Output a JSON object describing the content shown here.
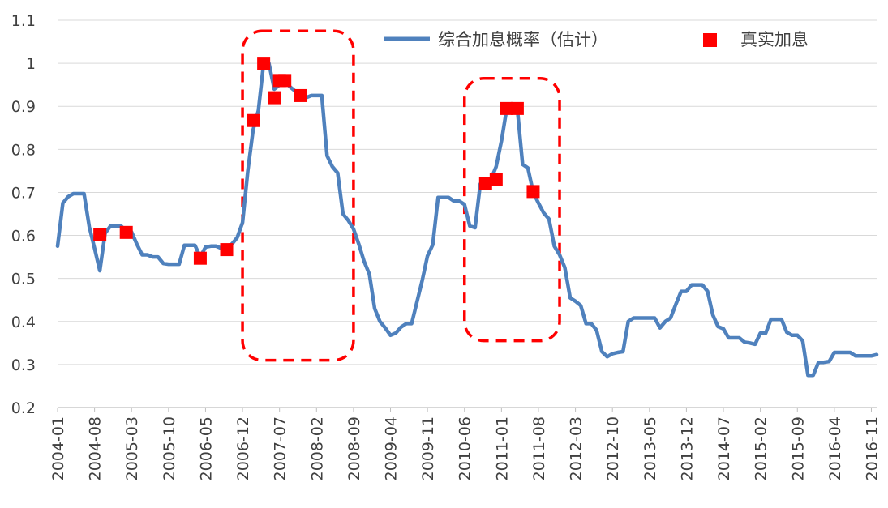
{
  "chart_data": {
    "type": "line",
    "title": "",
    "xlabel": "",
    "ylabel": "",
    "ylim": [
      0.2,
      1.1
    ],
    "yticks": [
      "0.2",
      "0.3",
      "0.4",
      "0.5",
      "0.6",
      "0.7",
      "0.8",
      "0.9",
      "1",
      "1.1"
    ],
    "xticks": [
      "2004-01",
      "2004-08",
      "2005-03",
      "2005-10",
      "2006-05",
      "2006-12",
      "2007-07",
      "2008-02",
      "2008-09",
      "2009-04",
      "2009-11",
      "2010-06",
      "2011-01",
      "2011-08",
      "2012-03",
      "2012-10",
      "2013-05",
      "2013-12",
      "2014-07",
      "2015-02",
      "2015-09",
      "2016-04",
      "2016-11"
    ],
    "grid": true,
    "legend": "top",
    "series": [
      {
        "name": "综合加息概率（估计）",
        "kind": "line",
        "color": "#4f81bd",
        "points": [
          [
            "2004-01",
            0.575
          ],
          [
            "2004-02",
            0.675
          ],
          [
            "2004-03",
            0.69
          ],
          [
            "2004-04",
            0.697
          ],
          [
            "2004-05",
            0.697
          ],
          [
            "2004-06",
            0.697
          ],
          [
            "2004-07",
            0.62
          ],
          [
            "2004-08",
            0.57
          ],
          [
            "2004-09",
            0.518
          ],
          [
            "2004-10",
            0.605
          ],
          [
            "2004-11",
            0.622
          ],
          [
            "2004-12",
            0.622
          ],
          [
            "2005-01",
            0.622
          ],
          [
            "2005-02",
            0.61
          ],
          [
            "2005-03",
            0.608
          ],
          [
            "2005-04",
            0.58
          ],
          [
            "2005-05",
            0.555
          ],
          [
            "2005-06",
            0.555
          ],
          [
            "2005-07",
            0.55
          ],
          [
            "2005-08",
            0.55
          ],
          [
            "2005-09",
            0.535
          ],
          [
            "2005-10",
            0.533
          ],
          [
            "2005-11",
            0.533
          ],
          [
            "2005-12",
            0.533
          ],
          [
            "2006-01",
            0.577
          ],
          [
            "2006-02",
            0.577
          ],
          [
            "2006-03",
            0.577
          ],
          [
            "2006-04",
            0.55
          ],
          [
            "2006-05",
            0.573
          ],
          [
            "2006-06",
            0.575
          ],
          [
            "2006-07",
            0.575
          ],
          [
            "2006-08",
            0.57
          ],
          [
            "2006-09",
            0.575
          ],
          [
            "2006-10",
            0.58
          ],
          [
            "2006-11",
            0.595
          ],
          [
            "2006-12",
            0.63
          ],
          [
            "2007-01",
            0.75
          ],
          [
            "2007-02",
            0.845
          ],
          [
            "2007-03",
            0.89
          ],
          [
            "2007-04",
            1.0
          ],
          [
            "2007-05",
            1.0
          ],
          [
            "2007-06",
            0.94
          ],
          [
            "2007-07",
            0.95
          ],
          [
            "2007-08",
            0.96
          ],
          [
            "2007-09",
            0.945
          ],
          [
            "2007-10",
            0.935
          ],
          [
            "2007-11",
            0.915
          ],
          [
            "2007-12",
            0.92
          ],
          [
            "2008-01",
            0.925
          ],
          [
            "2008-02",
            0.925
          ],
          [
            "2008-03",
            0.925
          ],
          [
            "2008-04",
            0.785
          ],
          [
            "2008-05",
            0.76
          ],
          [
            "2008-06",
            0.745
          ],
          [
            "2008-07",
            0.65
          ],
          [
            "2008-08",
            0.635
          ],
          [
            "2008-09",
            0.615
          ],
          [
            "2008-10",
            0.58
          ],
          [
            "2008-11",
            0.54
          ],
          [
            "2008-12",
            0.51
          ],
          [
            "2009-01",
            0.43
          ],
          [
            "2009-02",
            0.4
          ],
          [
            "2009-03",
            0.385
          ],
          [
            "2009-04",
            0.368
          ],
          [
            "2009-05",
            0.373
          ],
          [
            "2009-06",
            0.387
          ],
          [
            "2009-07",
            0.395
          ],
          [
            "2009-08",
            0.395
          ],
          [
            "2009-09",
            0.445
          ],
          [
            "2009-10",
            0.495
          ],
          [
            "2009-11",
            0.552
          ],
          [
            "2009-12",
            0.578
          ],
          [
            "2010-01",
            0.688
          ],
          [
            "2010-02",
            0.688
          ],
          [
            "2010-03",
            0.688
          ],
          [
            "2010-04",
            0.68
          ],
          [
            "2010-05",
            0.68
          ],
          [
            "2010-06",
            0.672
          ],
          [
            "2010-07",
            0.622
          ],
          [
            "2010-08",
            0.618
          ],
          [
            "2010-09",
            0.72
          ],
          [
            "2010-10",
            0.725
          ],
          [
            "2010-11",
            0.73
          ],
          [
            "2010-12",
            0.76
          ],
          [
            "2011-01",
            0.82
          ],
          [
            "2011-02",
            0.895
          ],
          [
            "2011-03",
            0.895
          ],
          [
            "2011-04",
            0.895
          ],
          [
            "2011-05",
            0.765
          ],
          [
            "2011-06",
            0.757
          ],
          [
            "2011-07",
            0.7
          ],
          [
            "2011-08",
            0.675
          ],
          [
            "2011-09",
            0.652
          ],
          [
            "2011-10",
            0.638
          ],
          [
            "2011-11",
            0.575
          ],
          [
            "2011-12",
            0.555
          ],
          [
            "2012-01",
            0.525
          ],
          [
            "2012-02",
            0.455
          ],
          [
            "2012-03",
            0.447
          ],
          [
            "2012-04",
            0.437
          ],
          [
            "2012-05",
            0.395
          ],
          [
            "2012-06",
            0.395
          ],
          [
            "2012-07",
            0.38
          ],
          [
            "2012-08",
            0.33
          ],
          [
            "2012-09",
            0.318
          ],
          [
            "2012-10",
            0.325
          ],
          [
            "2012-11",
            0.328
          ],
          [
            "2012-12",
            0.33
          ],
          [
            "2013-01",
            0.4
          ],
          [
            "2013-02",
            0.408
          ],
          [
            "2013-03",
            0.408
          ],
          [
            "2013-04",
            0.408
          ],
          [
            "2013-05",
            0.408
          ],
          [
            "2013-06",
            0.408
          ],
          [
            "2013-07",
            0.385
          ],
          [
            "2013-08",
            0.4
          ],
          [
            "2013-09",
            0.408
          ],
          [
            "2013-10",
            0.44
          ],
          [
            "2013-11",
            0.47
          ],
          [
            "2013-12",
            0.47
          ],
          [
            "2014-01",
            0.485
          ],
          [
            "2014-02",
            0.485
          ],
          [
            "2014-03",
            0.485
          ],
          [
            "2014-04",
            0.47
          ],
          [
            "2014-05",
            0.415
          ],
          [
            "2014-06",
            0.388
          ],
          [
            "2014-07",
            0.383
          ],
          [
            "2014-08",
            0.362
          ],
          [
            "2014-09",
            0.362
          ],
          [
            "2014-10",
            0.362
          ],
          [
            "2014-11",
            0.352
          ],
          [
            "2014-12",
            0.35
          ],
          [
            "2015-01",
            0.347
          ],
          [
            "2015-02",
            0.373
          ],
          [
            "2015-03",
            0.373
          ],
          [
            "2015-04",
            0.405
          ],
          [
            "2015-05",
            0.405
          ],
          [
            "2015-06",
            0.405
          ],
          [
            "2015-07",
            0.375
          ],
          [
            "2015-08",
            0.368
          ],
          [
            "2015-09",
            0.368
          ],
          [
            "2015-10",
            0.355
          ],
          [
            "2015-11",
            0.275
          ],
          [
            "2015-12",
            0.275
          ],
          [
            "2016-01",
            0.305
          ],
          [
            "2016-02",
            0.305
          ],
          [
            "2016-03",
            0.307
          ],
          [
            "2016-04",
            0.328
          ],
          [
            "2016-05",
            0.328
          ],
          [
            "2016-06",
            0.328
          ],
          [
            "2016-07",
            0.328
          ],
          [
            "2016-08",
            0.32
          ],
          [
            "2016-09",
            0.32
          ],
          [
            "2016-10",
            0.32
          ],
          [
            "2016-11",
            0.32
          ],
          [
            "2016-12",
            0.323
          ]
        ]
      },
      {
        "name": "真实加息",
        "kind": "scatter",
        "color": "#ff0000",
        "points": [
          [
            "2004-09",
            0.602
          ],
          [
            "2005-02",
            0.607
          ],
          [
            "2006-04",
            0.547
          ],
          [
            "2006-09",
            0.567
          ],
          [
            "2007-02",
            0.867
          ],
          [
            "2007-04",
            1.0
          ],
          [
            "2007-06",
            0.92
          ],
          [
            "2007-07",
            0.96
          ],
          [
            "2007-08",
            0.96
          ],
          [
            "2007-11",
            0.925
          ],
          [
            "2010-10",
            0.72
          ],
          [
            "2010-12",
            0.73
          ],
          [
            "2011-02",
            0.895
          ],
          [
            "2011-04",
            0.895
          ],
          [
            "2011-07",
            0.702
          ]
        ]
      }
    ],
    "annotations": [
      {
        "type": "dashed-box",
        "color": "#ff0000",
        "x": [
          "2006-12",
          "2008-09"
        ],
        "y": [
          0.31,
          1.075
        ]
      },
      {
        "type": "dashed-box",
        "color": "#ff0000",
        "x": [
          "2010-06",
          "2011-12"
        ],
        "y": [
          0.355,
          0.965
        ]
      }
    ]
  }
}
